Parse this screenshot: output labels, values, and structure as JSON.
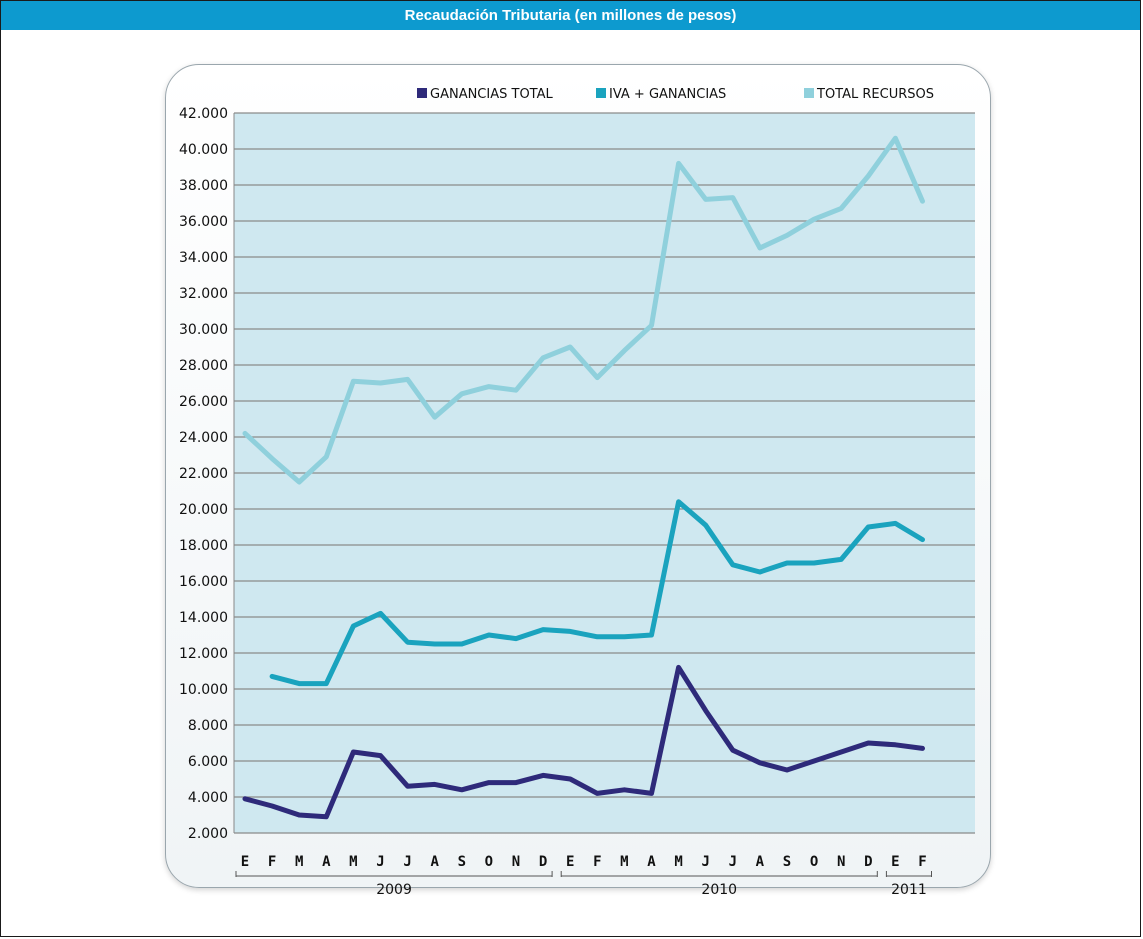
{
  "header": {
    "title": "Recaudación Tributaria (en millones de pesos)"
  },
  "colors": {
    "title_bar": "#0d9acf",
    "plot_bg": "#cfe8f0",
    "gridline": "#8a8a8a",
    "ganancias_total": "#2e2a7a",
    "iva_ganancias": "#1aa3be",
    "total_recursos": "#8fd0dc"
  },
  "chart_data": {
    "type": "line",
    "title": "",
    "xlabel": "",
    "ylabel": "",
    "ylim": [
      2000,
      42000
    ],
    "yticks": [
      2000,
      4000,
      6000,
      8000,
      10000,
      12000,
      14000,
      16000,
      18000,
      20000,
      22000,
      24000,
      26000,
      28000,
      30000,
      32000,
      34000,
      36000,
      38000,
      40000,
      42000
    ],
    "ytick_labels": [
      "2.000",
      "4.000",
      "6.000",
      "8.000",
      "10.000",
      "12.000",
      "14.000",
      "16.000",
      "18.000",
      "20.000",
      "22.000",
      "24.000",
      "26.000",
      "28.000",
      "30.000",
      "32.000",
      "34.000",
      "36.000",
      "38.000",
      "40.000",
      "42.000"
    ],
    "categories": [
      "E",
      "F",
      "M",
      "A",
      "M",
      "J",
      "J",
      "A",
      "S",
      "O",
      "N",
      "D",
      "E",
      "F",
      "M",
      "A",
      "M",
      "J",
      "J",
      "A",
      "S",
      "O",
      "N",
      "D",
      "E",
      "F"
    ],
    "years": [
      {
        "label": "2009",
        "start": 0,
        "end": 11
      },
      {
        "label": "2010",
        "start": 12,
        "end": 23
      },
      {
        "label": "2011",
        "start": 24,
        "end": 25
      }
    ],
    "grid": true,
    "legend_position": "top-right",
    "series": [
      {
        "name": "GANANCIAS TOTAL",
        "color": "#2e2a7a",
        "values": [
          3900,
          3500,
          3000,
          2900,
          6500,
          6300,
          4600,
          4700,
          4400,
          4800,
          4800,
          5200,
          5000,
          4200,
          4400,
          4200,
          11200,
          8800,
          6600,
          5900,
          5500,
          6000,
          6500,
          7000,
          6900,
          6700
        ]
      },
      {
        "name": "IVA + GANANCIAS",
        "color": "#1aa3be",
        "values": [
          null,
          10700,
          10300,
          10300,
          13500,
          14200,
          12600,
          12500,
          12500,
          13000,
          12800,
          13300,
          13200,
          12900,
          12900,
          13000,
          20400,
          19100,
          16900,
          16500,
          17000,
          17000,
          17200,
          19000,
          19200,
          18300
        ]
      },
      {
        "name": "TOTAL RECURSOS",
        "color": "#8fd0dc",
        "values": [
          24200,
          22800,
          21500,
          22900,
          27100,
          27000,
          27200,
          25100,
          26400,
          26800,
          26600,
          28400,
          29000,
          27300,
          28800,
          30200,
          39200,
          37200,
          37300,
          34500,
          35200,
          36100,
          36700,
          38500,
          40600,
          37100
        ]
      }
    ]
  }
}
